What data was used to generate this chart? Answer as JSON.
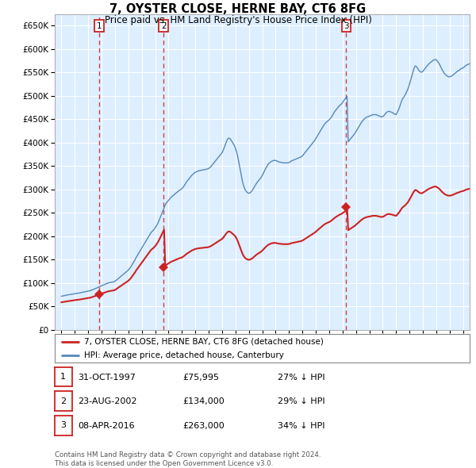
{
  "title": "7, OYSTER CLOSE, HERNE BAY, CT6 8FG",
  "subtitle": "Price paid vs. HM Land Registry's House Price Index (HPI)",
  "ylim": [
    0,
    675000
  ],
  "yticks": [
    0,
    50000,
    100000,
    150000,
    200000,
    250000,
    300000,
    350000,
    400000,
    450000,
    500000,
    550000,
    600000,
    650000
  ],
  "xlim_start": 1994.5,
  "xlim_end": 2025.5,
  "background_color": "#ffffff",
  "plot_bg_color": "#ddeeff",
  "grid_color": "#ffffff",
  "hpi_color": "#5588bb",
  "price_color": "#cc2222",
  "sales": [
    {
      "num": 1,
      "date_decimal": 1997.833,
      "price": 75995
    },
    {
      "num": 2,
      "date_decimal": 2002.639,
      "price": 134000
    },
    {
      "num": 3,
      "date_decimal": 2016.274,
      "price": 263000
    }
  ],
  "sale_table": [
    {
      "num": "1",
      "date": "31-OCT-1997",
      "price": "£75,995",
      "pct": "27% ↓ HPI"
    },
    {
      "num": "2",
      "date": "23-AUG-2002",
      "price": "£134,000",
      "pct": "29% ↓ HPI"
    },
    {
      "num": "3",
      "date": "08-APR-2016",
      "price": "£263,000",
      "pct": "34% ↓ HPI"
    }
  ],
  "legend_house_label": "7, OYSTER CLOSE, HERNE BAY, CT6 8FG (detached house)",
  "legend_hpi_label": "HPI: Average price, detached house, Canterbury",
  "footer": "Contains HM Land Registry data © Crown copyright and database right 2024.\nThis data is licensed under the Open Government Licence v3.0.",
  "hpi_data_y": [
    72000,
    72500,
    73000,
    73500,
    74000,
    74500,
    75000,
    75500,
    75800,
    76000,
    76500,
    77000,
    77500,
    78000,
    78200,
    78500,
    79000,
    79500,
    80000,
    80500,
    81000,
    81500,
    82000,
    82500,
    83000,
    83500,
    84000,
    85000,
    86000,
    87000,
    88000,
    89000,
    90000,
    91000,
    92500,
    93500,
    94500,
    95500,
    96500,
    97500,
    98500,
    99500,
    100500,
    101000,
    101500,
    102000,
    102500,
    103000,
    104000,
    106000,
    108000,
    110000,
    112000,
    114000,
    116000,
    118000,
    120000,
    122000,
    124000,
    126000,
    128000,
    131000,
    134000,
    138000,
    142000,
    146000,
    150000,
    155000,
    159000,
    163000,
    167000,
    171000,
    175000,
    179000,
    183000,
    187000,
    191000,
    195000,
    199000,
    203000,
    207000,
    210000,
    212000,
    215000,
    218000,
    222000,
    226000,
    231000,
    237000,
    243000,
    249000,
    255000,
    261000,
    267000,
    271000,
    274000,
    277000,
    280000,
    283000,
    285000,
    287000,
    289000,
    291000,
    293000,
    295000,
    297000,
    299000,
    300000,
    302000,
    305000,
    308000,
    312000,
    316000,
    319000,
    322000,
    325000,
    328000,
    331000,
    333000,
    335000,
    337000,
    338000,
    339000,
    340000,
    340500,
    341000,
    341500,
    342000,
    342500,
    343000,
    343500,
    344000,
    345000,
    347000,
    349000,
    352000,
    355000,
    358000,
    361000,
    364000,
    367000,
    370000,
    373000,
    376000,
    379000,
    384000,
    390000,
    397000,
    403000,
    408000,
    410000,
    409000,
    406000,
    402000,
    398000,
    394000,
    388000,
    380000,
    370000,
    358000,
    345000,
    332000,
    320000,
    310000,
    303000,
    298000,
    295000,
    293000,
    292000,
    293000,
    295000,
    298000,
    302000,
    306000,
    310000,
    314000,
    317000,
    320000,
    323000,
    326000,
    330000,
    335000,
    340000,
    345000,
    349000,
    353000,
    356000,
    358000,
    360000,
    361000,
    362000,
    362500,
    362000,
    361000,
    360000,
    359000,
    358500,
    358000,
    357500,
    357000,
    357000,
    357000,
    357000,
    357000,
    358000,
    359000,
    361000,
    362000,
    363000,
    364000,
    365000,
    366000,
    367000,
    368000,
    369000,
    370000,
    372000,
    375000,
    378000,
    381000,
    384000,
    387000,
    390000,
    393000,
    396000,
    399000,
    402000,
    405000,
    409000,
    413000,
    417000,
    421000,
    425000,
    429000,
    433000,
    437000,
    440000,
    443000,
    445000,
    447000,
    449000,
    452000,
    455000,
    459000,
    463000,
    467000,
    470000,
    473000,
    476000,
    479000,
    481000,
    483000,
    486000,
    490000,
    493000,
    496000,
    499000,
    402000,
    405000,
    408000,
    411000,
    414000,
    417000,
    420000,
    424000,
    428000,
    432000,
    436000,
    440000,
    444000,
    447000,
    450000,
    452000,
    454000,
    455000,
    456000,
    457000,
    458000,
    459000,
    460000,
    460000,
    460000,
    460000,
    459000,
    458000,
    457000,
    456000,
    455000,
    456000,
    458000,
    461000,
    464000,
    466000,
    467000,
    467000,
    466000,
    465000,
    464000,
    462000,
    461000,
    460000,
    465000,
    470000,
    476000,
    483000,
    490000,
    495000,
    498000,
    502000,
    507000,
    512000,
    518000,
    526000,
    534000,
    542000,
    551000,
    559000,
    564000,
    563000,
    560000,
    556000,
    553000,
    551000,
    551000,
    553000,
    556000,
    559000,
    562000,
    565000,
    568000,
    570000,
    572000,
    574000,
    576000,
    577000,
    578000,
    577000,
    574000,
    571000,
    567000,
    562000,
    557000,
    553000,
    549000,
    546000,
    544000,
    542000,
    541000,
    541000,
    542000,
    543000,
    545000,
    547000,
    549000,
    551000,
    553000,
    554000,
    556000,
    558000,
    559000,
    560000,
    562000,
    564000,
    566000,
    567000,
    568000,
    569000,
    570000,
    571000,
    572000,
    573000,
    574000,
    575000,
    578000,
    581000,
    585000,
    589000,
    592000,
    595000
  ]
}
